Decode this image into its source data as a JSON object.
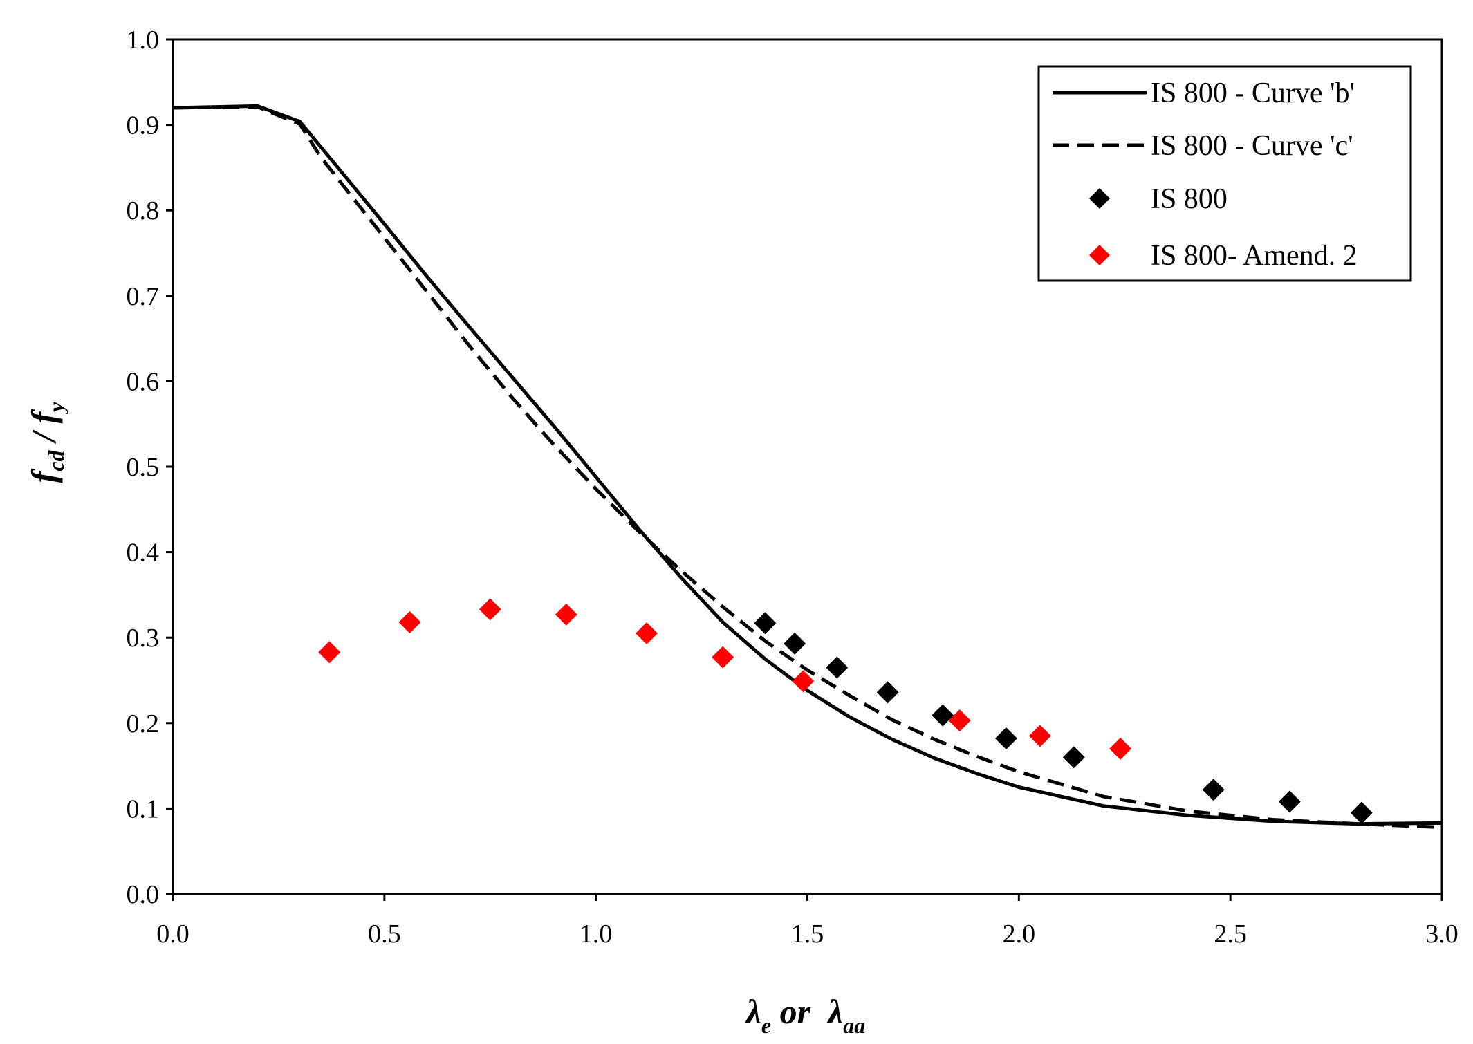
{
  "chart_data": {
    "type": "line",
    "title": "",
    "xlabel": {
      "main1": "λ",
      "sub1": "e",
      "mid": " or  ",
      "main2": "λ",
      "sub2": "aa"
    },
    "ylabel": {
      "main1": "f",
      "sub1": "cd",
      "mid": " / ",
      "main2": "f",
      "sub2": "y"
    },
    "xlim": [
      0.0,
      3.0
    ],
    "ylim": [
      0.0,
      1.0
    ],
    "x_ticks": [
      "0.0",
      "0.5",
      "1.0",
      "1.5",
      "2.0",
      "2.5",
      "3.0"
    ],
    "y_ticks": [
      "0.0",
      "0.1",
      "0.2",
      "0.3",
      "0.4",
      "0.5",
      "0.6",
      "0.7",
      "0.8",
      "0.9",
      "1.0"
    ],
    "grid": false,
    "legend_position": "top-right",
    "series": [
      {
        "name": "IS 800 - Curve 'b'",
        "style": "solid",
        "color": "#000000",
        "x": [
          0,
          0.2,
          0.3,
          0.4,
          0.5,
          0.6,
          0.7,
          0.8,
          0.9,
          1.0,
          1.1,
          1.2,
          1.3,
          1.4,
          1.5,
          1.6,
          1.7,
          1.8,
          1.9,
          2.0,
          2.2,
          2.4,
          2.6,
          2.8,
          3.0
        ],
        "y": [
          0.92,
          0.922,
          0.904,
          0.844,
          0.784,
          0.723,
          0.664,
          0.606,
          0.548,
          0.488,
          0.428,
          0.371,
          0.318,
          0.275,
          0.238,
          0.207,
          0.181,
          0.159,
          0.141,
          0.125,
          0.103,
          0.092,
          0.085,
          0.082,
          0.083
        ]
      },
      {
        "name": "IS 800 - Curve 'c'",
        "style": "dashed",
        "color": "#000000",
        "x": [
          0,
          0.2,
          0.3,
          0.35,
          0.5,
          0.6,
          0.7,
          0.8,
          0.9,
          1.0,
          1.1,
          1.2,
          1.3,
          1.4,
          1.5,
          1.6,
          1.7,
          1.8,
          1.9,
          2.0,
          2.2,
          2.4,
          2.6,
          2.8,
          3.0
        ],
        "y": [
          0.92,
          0.921,
          0.901,
          0.862,
          0.768,
          0.705,
          0.642,
          0.582,
          0.526,
          0.474,
          0.425,
          0.379,
          0.336,
          0.296,
          0.262,
          0.232,
          0.204,
          0.181,
          0.161,
          0.143,
          0.114,
          0.097,
          0.087,
          0.082,
          0.078
        ]
      },
      {
        "name": "IS 800",
        "style": "markers",
        "marker": "diamond",
        "color": "#000000",
        "x": [
          1.4,
          1.47,
          1.57,
          1.69,
          1.82,
          1.97,
          2.13,
          2.46,
          2.64,
          2.81
        ],
        "y": [
          0.317,
          0.293,
          0.265,
          0.236,
          0.209,
          0.182,
          0.16,
          0.122,
          0.108,
          0.095
        ]
      },
      {
        "name": "IS 800- Amend. 2",
        "style": "markers",
        "marker": "diamond",
        "color": "#ff0000",
        "x": [
          0.37,
          0.56,
          0.75,
          0.93,
          1.12,
          1.3,
          1.49,
          1.86,
          2.05,
          2.24
        ],
        "y": [
          0.283,
          0.318,
          0.333,
          0.327,
          0.305,
          0.277,
          0.249,
          0.203,
          0.185,
          0.17
        ]
      }
    ]
  }
}
